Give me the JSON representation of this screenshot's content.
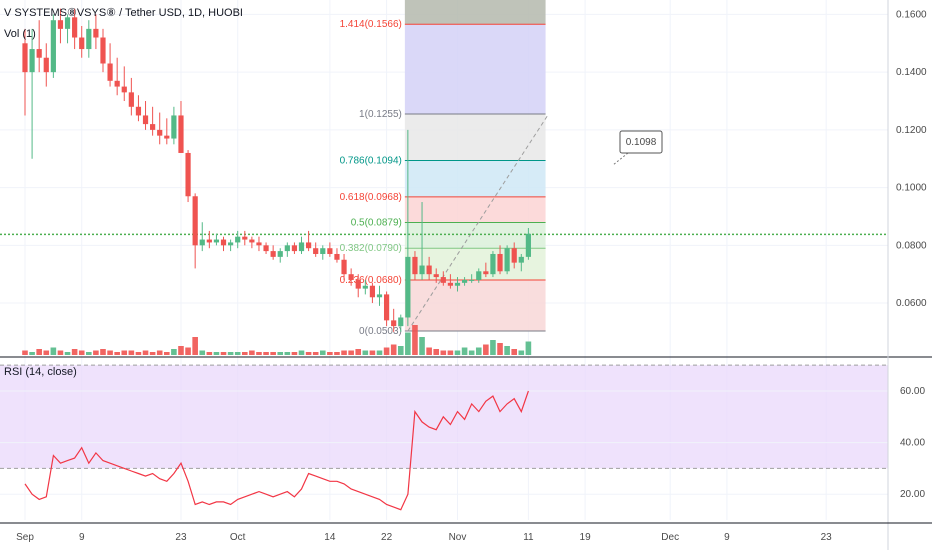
{
  "title": "V SYSTEMS⑧VSYS⑧ / Tether USD, 1D, HUOBI",
  "volume_label": "Vol (1)",
  "rsi_label": "RSI (14, close)",
  "callout": "0.1098",
  "colors": {
    "up": "#26a69a",
    "up_fill": "#53b987",
    "down": "#ef5350",
    "rsi_band": "#e9d8fb",
    "price_line": "#4caf50"
  },
  "chart_data": [
    {
      "type": "candlestick",
      "title": "V SYSTEMS⑧VSYS⑧ / Tether USD, 1D, HUOBI",
      "x_ticks": [
        {
          "label": "Sep",
          "day": 0
        },
        {
          "label": "9",
          "day": 8
        },
        {
          "label": "23",
          "day": 22
        },
        {
          "label": "Oct",
          "day": 30
        },
        {
          "label": "14",
          "day": 43
        },
        {
          "label": "22",
          "day": 51
        },
        {
          "label": "Nov",
          "day": 61
        },
        {
          "label": "11",
          "day": 71
        },
        {
          "label": "19",
          "day": 79
        },
        {
          "label": "Dec",
          "day": 91
        },
        {
          "label": "9",
          "day": 99
        },
        {
          "label": "23",
          "day": 113
        }
      ],
      "y_ticks": [
        0.06,
        0.08,
        0.1,
        0.12,
        0.14,
        0.16
      ],
      "ylim": [
        0.042,
        0.165
      ],
      "current_price": 0.0838,
      "candles": [
        [
          0.15,
          0.155,
          0.125,
          0.14
        ],
        [
          0.14,
          0.155,
          0.11,
          0.148
        ],
        [
          0.148,
          0.158,
          0.14,
          0.145
        ],
        [
          0.145,
          0.15,
          0.135,
          0.14
        ],
        [
          0.14,
          0.16,
          0.138,
          0.158
        ],
        [
          0.158,
          0.162,
          0.15,
          0.155
        ],
        [
          0.155,
          0.16,
          0.15,
          0.159
        ],
        [
          0.159,
          0.162,
          0.148,
          0.152
        ],
        [
          0.152,
          0.156,
          0.145,
          0.148
        ],
        [
          0.148,
          0.158,
          0.145,
          0.155
        ],
        [
          0.155,
          0.16,
          0.148,
          0.152
        ],
        [
          0.152,
          0.155,
          0.14,
          0.143
        ],
        [
          0.143,
          0.15,
          0.135,
          0.137
        ],
        [
          0.137,
          0.145,
          0.132,
          0.135
        ],
        [
          0.135,
          0.142,
          0.13,
          0.133
        ],
        [
          0.133,
          0.138,
          0.125,
          0.128
        ],
        [
          0.128,
          0.132,
          0.123,
          0.125
        ],
        [
          0.125,
          0.13,
          0.12,
          0.122
        ],
        [
          0.122,
          0.128,
          0.118,
          0.12
        ],
        [
          0.12,
          0.126,
          0.115,
          0.118
        ],
        [
          0.118,
          0.124,
          0.115,
          0.117
        ],
        [
          0.117,
          0.128,
          0.115,
          0.125
        ],
        [
          0.125,
          0.13,
          0.112,
          0.112
        ],
        [
          0.112,
          0.113,
          0.095,
          0.097
        ],
        [
          0.097,
          0.098,
          0.072,
          0.08
        ],
        [
          0.08,
          0.088,
          0.078,
          0.082
        ],
        [
          0.082,
          0.085,
          0.079,
          0.081
        ],
        [
          0.081,
          0.084,
          0.08,
          0.082
        ],
        [
          0.082,
          0.083,
          0.078,
          0.08
        ],
        [
          0.08,
          0.082,
          0.078,
          0.081
        ],
        [
          0.081,
          0.085,
          0.079,
          0.083
        ],
        [
          0.083,
          0.085,
          0.08,
          0.082
        ],
        [
          0.082,
          0.083,
          0.079,
          0.081
        ],
        [
          0.081,
          0.083,
          0.078,
          0.08
        ],
        [
          0.08,
          0.081,
          0.077,
          0.078
        ],
        [
          0.078,
          0.08,
          0.075,
          0.076
        ],
        [
          0.076,
          0.079,
          0.074,
          0.078
        ],
        [
          0.078,
          0.081,
          0.076,
          0.08
        ],
        [
          0.08,
          0.081,
          0.077,
          0.078
        ],
        [
          0.078,
          0.083,
          0.077,
          0.081
        ],
        [
          0.081,
          0.085,
          0.078,
          0.079
        ],
        [
          0.079,
          0.081,
          0.076,
          0.077
        ],
        [
          0.077,
          0.08,
          0.075,
          0.079
        ],
        [
          0.079,
          0.081,
          0.076,
          0.077
        ],
        [
          0.077,
          0.079,
          0.074,
          0.075
        ],
        [
          0.075,
          0.077,
          0.068,
          0.07
        ],
        [
          0.07,
          0.072,
          0.066,
          0.068
        ],
        [
          0.068,
          0.07,
          0.062,
          0.065
        ],
        [
          0.065,
          0.068,
          0.063,
          0.066
        ],
        [
          0.066,
          0.067,
          0.06,
          0.062
        ],
        [
          0.062,
          0.066,
          0.059,
          0.063
        ],
        [
          0.063,
          0.064,
          0.052,
          0.054
        ],
        [
          0.054,
          0.058,
          0.05,
          0.052
        ],
        [
          0.052,
          0.056,
          0.05,
          0.055
        ],
        [
          0.055,
          0.12,
          0.052,
          0.076
        ],
        [
          0.076,
          0.078,
          0.068,
          0.07
        ],
        [
          0.07,
          0.095,
          0.068,
          0.073
        ],
        [
          0.073,
          0.076,
          0.068,
          0.07
        ],
        [
          0.07,
          0.072,
          0.067,
          0.069
        ],
        [
          0.069,
          0.071,
          0.066,
          0.067
        ],
        [
          0.067,
          0.07,
          0.065,
          0.066
        ],
        [
          0.066,
          0.069,
          0.064,
          0.067
        ],
        [
          0.067,
          0.069,
          0.066,
          0.068
        ],
        [
          0.068,
          0.07,
          0.067,
          0.068
        ],
        [
          0.068,
          0.072,
          0.067,
          0.071
        ],
        [
          0.071,
          0.074,
          0.069,
          0.07
        ],
        [
          0.07,
          0.078,
          0.069,
          0.077
        ],
        [
          0.077,
          0.08,
          0.07,
          0.071
        ],
        [
          0.071,
          0.08,
          0.07,
          0.079
        ],
        [
          0.079,
          0.081,
          0.072,
          0.074
        ],
        [
          0.074,
          0.077,
          0.071,
          0.076
        ],
        [
          0.076,
          0.086,
          0.075,
          0.084
        ]
      ],
      "volumes": [
        3,
        2,
        4,
        3,
        5,
        3,
        2,
        4,
        3,
        2,
        3,
        4,
        3,
        2,
        3,
        3,
        2,
        3,
        2,
        3,
        2,
        4,
        6,
        5,
        12,
        3,
        2,
        2,
        2,
        2,
        2,
        2,
        3,
        2,
        2,
        2,
        2,
        2,
        2,
        3,
        2,
        2,
        3,
        2,
        2,
        3,
        3,
        4,
        3,
        3,
        3,
        5,
        7,
        6,
        15,
        20,
        12,
        5,
        4,
        3,
        3,
        3,
        5,
        3,
        5,
        7,
        10,
        8,
        6,
        4,
        3,
        9
      ],
      "fibonacci": [
        {
          "label": "0(0.0503)",
          "value": 0.0503,
          "color": "#787b86"
        },
        {
          "label": "0.236(0.0680)",
          "value": 0.068,
          "color": "#f44336"
        },
        {
          "label": "0.382(0.0790)",
          "value": 0.079,
          "color": "#81c784"
        },
        {
          "label": "0.5(0.0879)",
          "value": 0.0879,
          "color": "#4caf50"
        },
        {
          "label": "0.618(0.0968)",
          "value": 0.0968,
          "color": "#f44336"
        },
        {
          "label": "0.786(0.1094)",
          "value": 0.1094,
          "color": "#009688"
        },
        {
          "label": "1(0.1255)",
          "value": 0.1255,
          "color": "#787b86"
        },
        {
          "label": "1.414(0.1566)",
          "value": 0.1566,
          "color": "#f44336"
        }
      ],
      "fib_zone_fills": [
        "#f8d7d7",
        "#e3f2d9",
        "#daf0d9",
        "#fbd4d4",
        "#cfe8f6",
        "#e7e7e7",
        "#d3d1f7",
        "#b4b8ad"
      ],
      "fib_days": [
        54,
        73
      ]
    },
    {
      "type": "line",
      "title": "RSI (14, close)",
      "y_ticks": [
        20.0,
        40.0,
        60.0
      ],
      "ylim": [
        10,
        72
      ],
      "band": [
        30,
        70
      ],
      "values": [
        24,
        20,
        18,
        19,
        35,
        32,
        33,
        34,
        38,
        32,
        36,
        33,
        32,
        31,
        30,
        29,
        28,
        27,
        28,
        26,
        25,
        28,
        32,
        25,
        16,
        17,
        16,
        17,
        17,
        16,
        18,
        19,
        20,
        21,
        20,
        19,
        20,
        21,
        19,
        22,
        28,
        27,
        26,
        25,
        25,
        24,
        22,
        21,
        20,
        19,
        18,
        16,
        15,
        14,
        20,
        52,
        48,
        46,
        45,
        50,
        47,
        52,
        49,
        55,
        52,
        56,
        58,
        52,
        55,
        57,
        52,
        60
      ]
    }
  ]
}
